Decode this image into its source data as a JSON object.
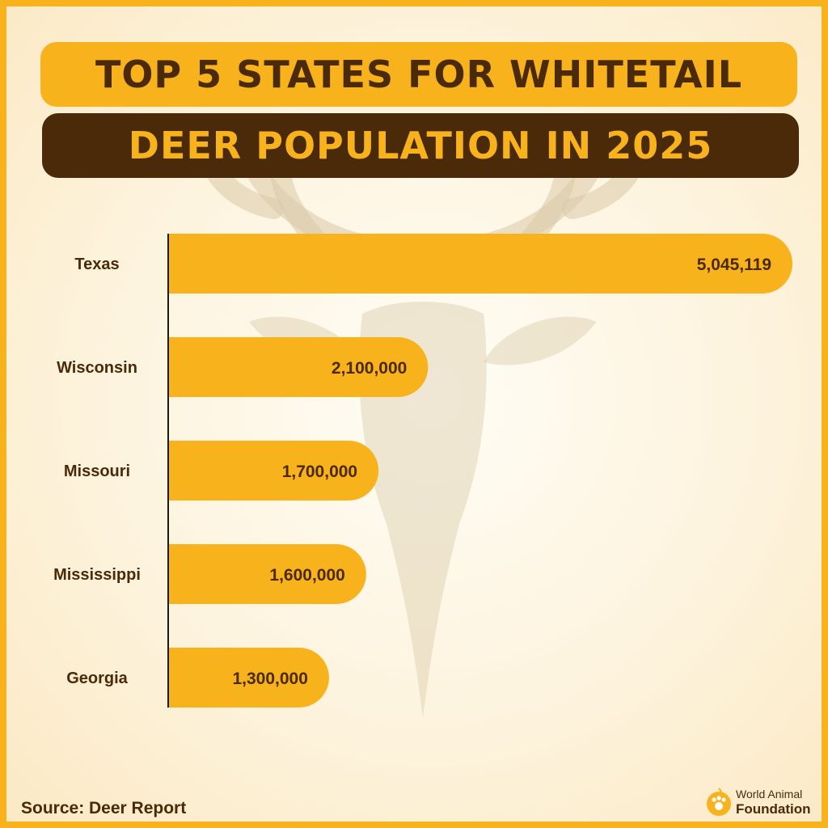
{
  "title": {
    "line1": "TOP 5 STATES FOR WHITETAIL",
    "line2": "DEER POPULATION IN 2025"
  },
  "chart_data": {
    "type": "bar",
    "orientation": "horizontal",
    "categories": [
      "Texas",
      "Wisconsin",
      "Missouri",
      "Mississippi",
      "Georgia"
    ],
    "values": [
      5045119,
      2100000,
      1700000,
      1600000,
      1300000
    ],
    "value_labels": [
      "5,045,119",
      "2,100,000",
      "1,700,000",
      "1,600,000",
      "1,300,000"
    ],
    "grid": false,
    "legend": "none"
  },
  "source": "Source: Deer Report",
  "logo": {
    "line1": "World Animal",
    "line2": "Foundation",
    "icon": "paw-icon"
  },
  "colors": {
    "accent": "#f8b21c",
    "dark": "#4a2a08",
    "background": "#fdf3dd"
  }
}
